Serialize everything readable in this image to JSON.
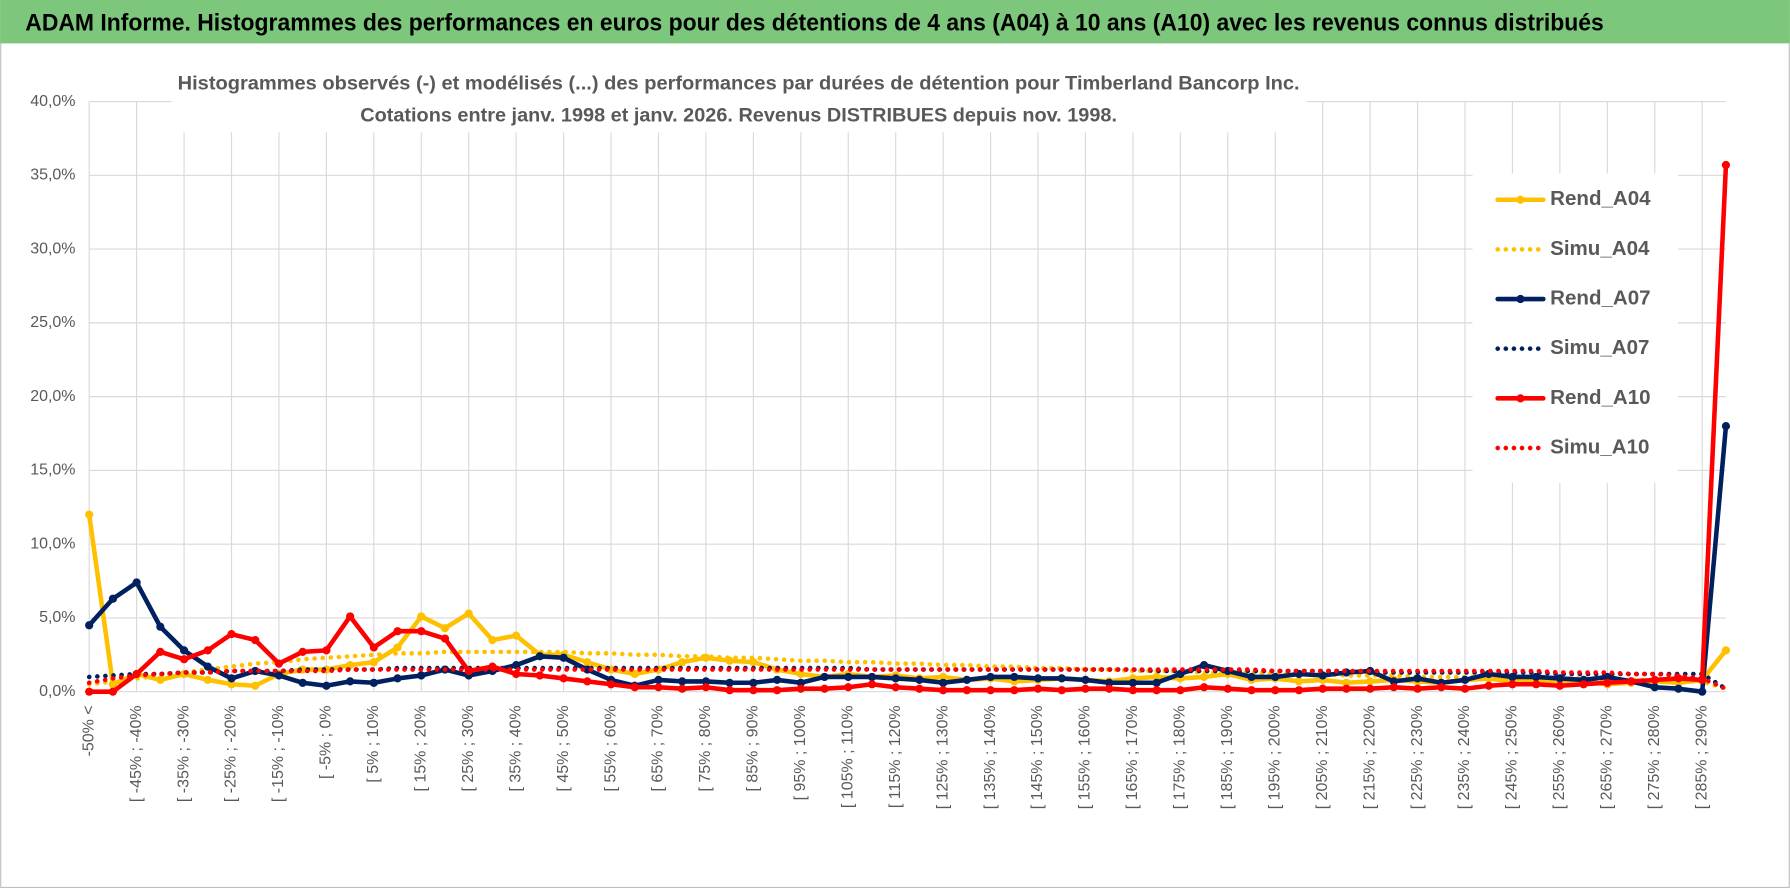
{
  "header_title": "ADAM Informe. Histogrammes des performances en euros pour des détentions de 4 ans (A04) à 10 ans (A10) avec les revenus connus distribués",
  "chart_data": {
    "type": "line",
    "title": "Histogrammes observés (-) et modélisés (...) des performances par durées de détention pour Timberland Bancorp Inc.",
    "subtitle": "Cotations entre janv. 1998 et janv. 2026. Revenus DISTRIBUES depuis nov. 1998.",
    "categories": [
      "-50% <",
      null,
      "[ -45% ; -40%",
      null,
      "[ -35% ; -30%",
      null,
      "[ -25% ; -20%",
      null,
      "[ -15% ; -10%",
      null,
      "[ -5% ; 0%",
      null,
      "[ 5% ; 10%",
      null,
      "[ 15% ; 20%",
      null,
      "[ 25% ; 30%",
      null,
      "[ 35% ; 40%",
      null,
      "[ 45% ; 50%",
      null,
      "[ 55% ; 60%",
      null,
      "[ 65% ; 70%",
      null,
      "[ 75% ; 80%",
      null,
      "[ 85% ; 90%",
      null,
      "[ 95% ; 100%",
      null,
      "[ 105% ; 110%",
      null,
      "[ 115% ; 120%",
      null,
      "[ 125% ; 130%",
      null,
      "[ 135% ; 140%",
      null,
      "[ 145% ; 150%",
      null,
      "[ 155% ; 160%",
      null,
      "[ 165% ; 170%",
      null,
      "[ 175% ; 180%",
      null,
      "[ 185% ; 190%",
      null,
      "[ 195% ; 200%",
      null,
      "[ 205% ; 210%",
      null,
      "[ 215% ; 220%",
      null,
      "[ 225% ; 230%",
      null,
      "[ 235% ; 240%",
      null,
      "[ 245% ; 250%",
      null,
      "[ 255% ; 260%",
      null,
      "[ 265% ; 270%",
      null,
      "[ 275% ; 280%",
      null,
      "[ 285% ; 290%",
      null
    ],
    "series": [
      {
        "name": "Rend_A04",
        "color": "#ffc000",
        "style": "solid",
        "values": [
          12.0,
          0.5,
          1.2,
          0.8,
          1.2,
          0.8,
          0.5,
          0.4,
          1.2,
          1.5,
          1.5,
          1.8,
          2.0,
          3.0,
          5.1,
          4.3,
          5.3,
          3.5,
          3.8,
          2.5,
          2.5,
          2.0,
          1.5,
          1.2,
          1.5,
          2.0,
          2.3,
          2.1,
          2.0,
          1.5,
          1.2,
          1.0,
          1.2,
          1.0,
          1.1,
          0.9,
          1.0,
          0.8,
          0.9,
          0.7,
          0.8,
          0.9,
          0.8,
          0.7,
          0.9,
          1.0,
          0.9,
          1.0,
          1.2,
          0.8,
          0.9,
          0.7,
          0.8,
          0.6,
          0.7,
          0.8,
          0.7,
          0.6,
          0.8,
          0.9,
          0.7,
          0.8,
          0.6,
          0.7,
          0.5,
          0.6,
          0.7,
          0.6,
          0.8,
          2.8
        ]
      },
      {
        "name": "Simu_A04",
        "color": "#ffc000",
        "style": "dotted",
        "values": [
          0.5,
          0.7,
          0.9,
          1.1,
          1.3,
          1.5,
          1.7,
          1.9,
          2.0,
          2.2,
          2.3,
          2.4,
          2.5,
          2.6,
          2.6,
          2.7,
          2.7,
          2.7,
          2.7,
          2.7,
          2.7,
          2.6,
          2.6,
          2.5,
          2.5,
          2.4,
          2.4,
          2.3,
          2.3,
          2.2,
          2.1,
          2.1,
          2.0,
          2.0,
          1.9,
          1.9,
          1.8,
          1.8,
          1.7,
          1.7,
          1.6,
          1.6,
          1.5,
          1.5,
          1.4,
          1.4,
          1.4,
          1.3,
          1.3,
          1.3,
          1.2,
          1.2,
          1.2,
          1.1,
          1.1,
          1.1,
          1.0,
          1.0,
          1.0,
          1.0,
          0.9,
          0.9,
          0.9,
          0.9,
          0.8,
          0.8,
          0.8,
          0.8,
          0.7,
          0.2
        ]
      },
      {
        "name": "Rend_A07",
        "color": "#002060",
        "style": "solid",
        "values": [
          4.5,
          6.3,
          7.4,
          4.4,
          2.8,
          1.7,
          0.9,
          1.4,
          1.1,
          0.6,
          0.4,
          0.7,
          0.6,
          0.9,
          1.1,
          1.5,
          1.1,
          1.4,
          1.8,
          2.4,
          2.3,
          1.5,
          0.8,
          0.4,
          0.8,
          0.7,
          0.7,
          0.6,
          0.6,
          0.8,
          0.6,
          1.0,
          1.0,
          1.0,
          0.9,
          0.8,
          0.6,
          0.8,
          1.0,
          1.0,
          0.9,
          0.9,
          0.8,
          0.6,
          0.6,
          0.6,
          1.2,
          1.8,
          1.4,
          1.0,
          1.0,
          1.2,
          1.1,
          1.3,
          1.4,
          0.7,
          0.9,
          0.6,
          0.8,
          1.2,
          1.0,
          1.0,
          0.9,
          0.8,
          1.0,
          0.7,
          0.3,
          0.2,
          0.0,
          18.0
        ]
      },
      {
        "name": "Simu_A07",
        "color": "#002060",
        "style": "dotted",
        "values": [
          1.0,
          1.1,
          1.2,
          1.2,
          1.3,
          1.3,
          1.4,
          1.4,
          1.4,
          1.5,
          1.5,
          1.5,
          1.5,
          1.6,
          1.6,
          1.6,
          1.6,
          1.6,
          1.6,
          1.6,
          1.6,
          1.6,
          1.6,
          1.6,
          1.6,
          1.6,
          1.6,
          1.6,
          1.6,
          1.6,
          1.6,
          1.6,
          1.6,
          1.5,
          1.5,
          1.5,
          1.5,
          1.5,
          1.5,
          1.5,
          1.5,
          1.5,
          1.5,
          1.5,
          1.5,
          1.4,
          1.4,
          1.4,
          1.4,
          1.4,
          1.4,
          1.4,
          1.4,
          1.4,
          1.3,
          1.3,
          1.3,
          1.3,
          1.3,
          1.3,
          1.3,
          1.3,
          1.2,
          1.2,
          1.2,
          1.2,
          1.2,
          1.2,
          1.2,
          0.2
        ]
      },
      {
        "name": "Rend_A10",
        "color": "#ff0000",
        "style": "solid",
        "values": [
          0.0,
          0.0,
          1.2,
          2.7,
          2.2,
          2.8,
          3.9,
          3.5,
          1.9,
          2.7,
          2.8,
          5.1,
          3.0,
          4.1,
          4.1,
          3.6,
          1.4,
          1.7,
          1.2,
          1.1,
          0.9,
          0.7,
          0.5,
          0.3,
          0.3,
          0.2,
          0.3,
          0.1,
          0.1,
          0.1,
          0.2,
          0.2,
          0.3,
          0.5,
          0.3,
          0.2,
          0.1,
          0.1,
          0.1,
          0.1,
          0.2,
          0.1,
          0.2,
          0.2,
          0.1,
          0.1,
          0.1,
          0.3,
          0.2,
          0.1,
          0.1,
          0.1,
          0.2,
          0.2,
          0.2,
          0.3,
          0.2,
          0.3,
          0.2,
          0.4,
          0.5,
          0.5,
          0.4,
          0.5,
          0.6,
          0.7,
          0.8,
          0.9,
          0.8,
          35.7
        ]
      },
      {
        "name": "Simu_A10",
        "color": "#ff0000",
        "style": "dotted",
        "values": [
          0.6,
          0.9,
          1.1,
          1.2,
          1.3,
          1.3,
          1.4,
          1.4,
          1.4,
          1.4,
          1.4,
          1.5,
          1.5,
          1.5,
          1.5,
          1.5,
          1.5,
          1.5,
          1.5,
          1.5,
          1.5,
          1.5,
          1.5,
          1.5,
          1.5,
          1.5,
          1.5,
          1.5,
          1.5,
          1.5,
          1.5,
          1.5,
          1.5,
          1.5,
          1.5,
          1.5,
          1.5,
          1.5,
          1.5,
          1.5,
          1.5,
          1.5,
          1.5,
          1.5,
          1.5,
          1.5,
          1.5,
          1.5,
          1.5,
          1.5,
          1.4,
          1.4,
          1.4,
          1.4,
          1.4,
          1.4,
          1.4,
          1.4,
          1.4,
          1.4,
          1.4,
          1.4,
          1.3,
          1.3,
          1.3,
          1.2,
          1.2,
          1.1,
          0.9,
          0.2
        ]
      }
    ],
    "ylim": [
      0,
      40
    ],
    "yticks": [
      {
        "value": 0,
        "label": "0,0%"
      },
      {
        "value": 5,
        "label": "5,0%"
      },
      {
        "value": 10,
        "label": "10,0%"
      },
      {
        "value": 15,
        "label": "15,0%"
      },
      {
        "value": 20,
        "label": "20,0%"
      },
      {
        "value": 25,
        "label": "25,0%"
      },
      {
        "value": 30,
        "label": "30,0%"
      },
      {
        "value": 35,
        "label": "35,0%"
      },
      {
        "value": 40,
        "label": "40,0%"
      }
    ],
    "grid": true,
    "legend": "right"
  }
}
